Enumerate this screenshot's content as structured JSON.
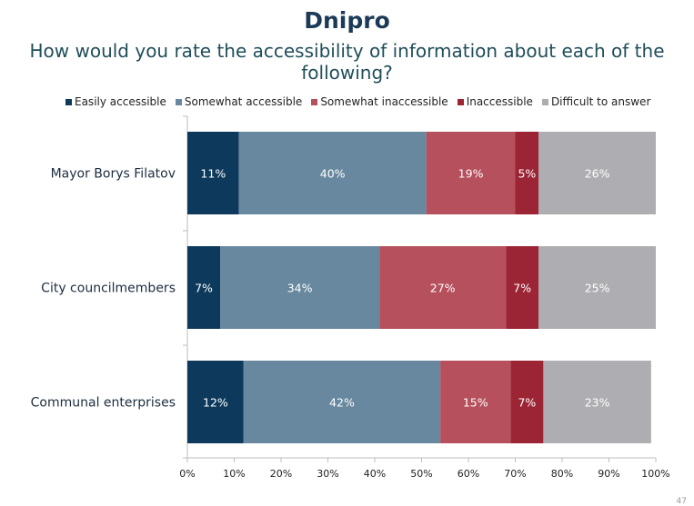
{
  "chart_data": {
    "type": "bar",
    "orientation": "horizontal",
    "stacked": true,
    "title": "Dnipro",
    "subtitle": "How would you rate the accessibility of information about each of the following?",
    "categories": [
      "Mayor Borys Filatov",
      "City councilmembers",
      "Communal enterprises"
    ],
    "series": [
      {
        "name": "Easily accessible",
        "color": "#0d3a5c",
        "values": [
          11,
          7,
          12
        ]
      },
      {
        "name": "Somewhat accessible",
        "color": "#67889e",
        "values": [
          40,
          34,
          42
        ]
      },
      {
        "name": "Somewhat inaccessible",
        "color": "#b5505c",
        "values": [
          19,
          27,
          15
        ]
      },
      {
        "name": "Inaccessible",
        "color": "#9c2535",
        "values": [
          5,
          7,
          7
        ]
      },
      {
        "name": "Difficult to answer",
        "color": "#aeadb1",
        "values": [
          26,
          25,
          23
        ]
      }
    ],
    "x_ticks": [
      "0%",
      "10%",
      "20%",
      "30%",
      "40%",
      "50%",
      "60%",
      "70%",
      "80%",
      "90%",
      "100%"
    ],
    "xlim": [
      0,
      100
    ],
    "legend_position": "top",
    "grid": false
  },
  "page_number": "47"
}
